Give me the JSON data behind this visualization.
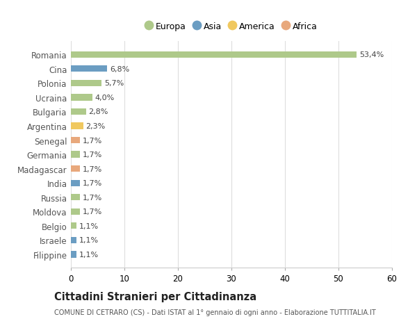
{
  "countries": [
    "Romania",
    "Cina",
    "Polonia",
    "Ucraina",
    "Bulgaria",
    "Argentina",
    "Senegal",
    "Germania",
    "Madagascar",
    "India",
    "Russia",
    "Moldova",
    "Belgio",
    "Israele",
    "Filippine"
  ],
  "values": [
    53.4,
    6.8,
    5.7,
    4.0,
    2.8,
    2.3,
    1.7,
    1.7,
    1.7,
    1.7,
    1.7,
    1.7,
    1.1,
    1.1,
    1.1
  ],
  "labels": [
    "53,4%",
    "6,8%",
    "5,7%",
    "4,0%",
    "2,8%",
    "2,3%",
    "1,7%",
    "1,7%",
    "1,7%",
    "1,7%",
    "1,7%",
    "1,7%",
    "1,1%",
    "1,1%",
    "1,1%"
  ],
  "colors": [
    "#aec98a",
    "#6b9dc2",
    "#aec98a",
    "#aec98a",
    "#aec98a",
    "#f0c85f",
    "#e8a87c",
    "#aec98a",
    "#e8a87c",
    "#6b9dc2",
    "#aec98a",
    "#aec98a",
    "#aec98a",
    "#6b9dc2",
    "#6b9dc2"
  ],
  "legend_labels": [
    "Europa",
    "Asia",
    "America",
    "Africa"
  ],
  "legend_colors": [
    "#aec98a",
    "#6b9dc2",
    "#f0c85f",
    "#e8a87c"
  ],
  "title": "Cittadini Stranieri per Cittadinanza",
  "subtitle": "COMUNE DI CETRARO (CS) - Dati ISTAT al 1° gennaio di ogni anno - Elaborazione TUTTITALIA.IT",
  "xlim": [
    0,
    60
  ],
  "xticks": [
    0,
    10,
    20,
    30,
    40,
    50,
    60
  ],
  "background_color": "#ffffff",
  "grid_color": "#dddddd"
}
